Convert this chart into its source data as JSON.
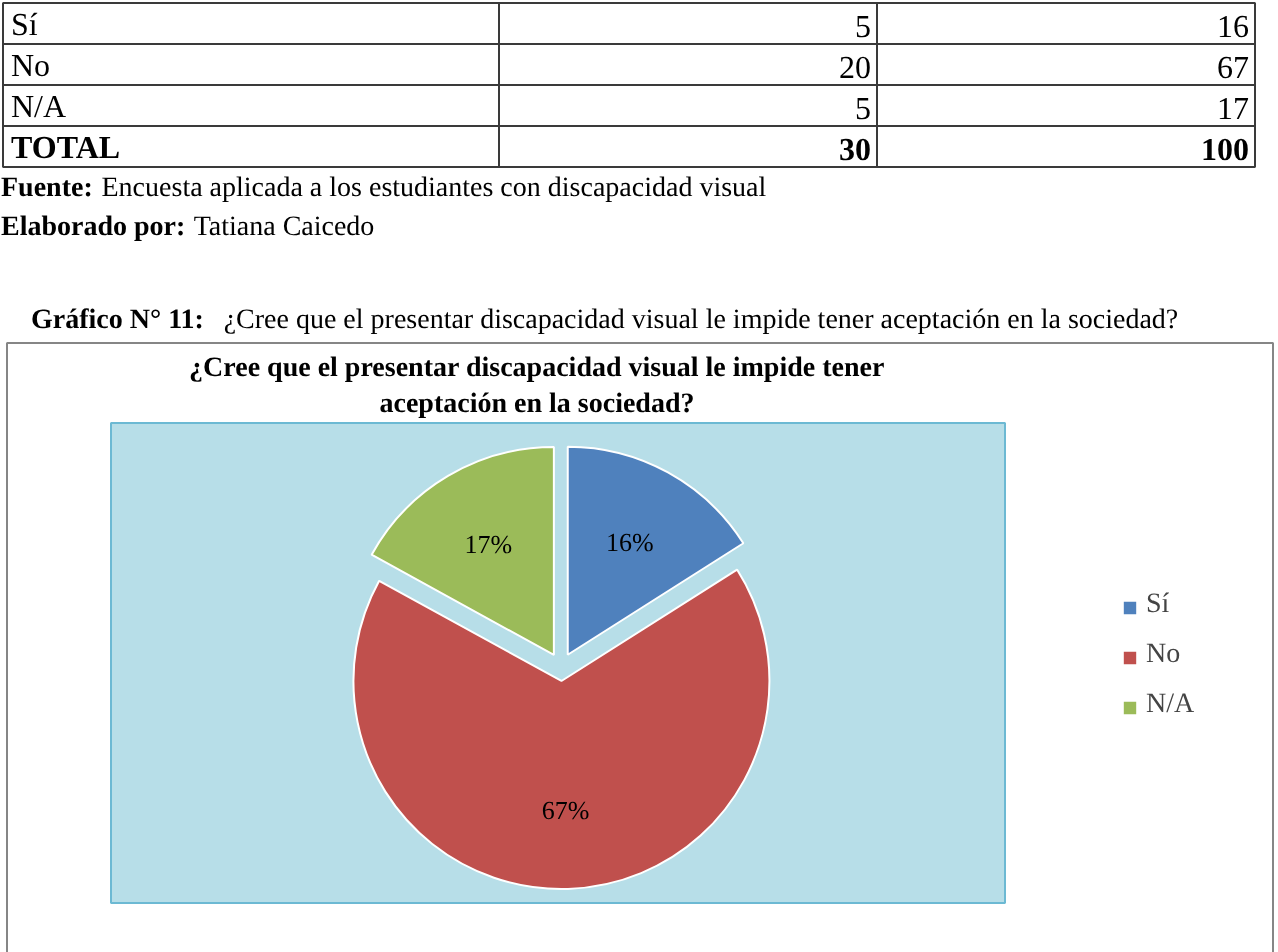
{
  "chart_data": [
    {
      "type": "other",
      "categories": [
        "Sí",
        "No",
        "N/A",
        "TOTAL"
      ],
      "series": [
        {
          "values": [
            5,
            20,
            5,
            30
          ]
        },
        {
          "values": [
            16,
            67,
            17,
            100
          ]
        }
      ],
      "data_labels": true,
      "annotations": [
        "Fuente: Encuesta aplicada a los estudiantes con discapacidad visual",
        "Elaborado por: Tatiana Caicedo"
      ]
    },
    {
      "type": "pie",
      "title": "¿Cree que el presentar discapacidad visual le impide tener aceptación en la sociedad?",
      "categories": [
        "Sí",
        "No",
        "N/A"
      ],
      "values": [
        16,
        67,
        17
      ],
      "colors": [
        "#4f81bd",
        "#c0504d",
        "#9bbb59"
      ],
      "value_labels": [
        "16%",
        "67%",
        "17%"
      ],
      "legend": "right",
      "annotations": [
        "Gráfico N° 11: ¿Cree que el presentar discapacidad visual le impide tener aceptación en la sociedad?"
      ]
    }
  ]
}
